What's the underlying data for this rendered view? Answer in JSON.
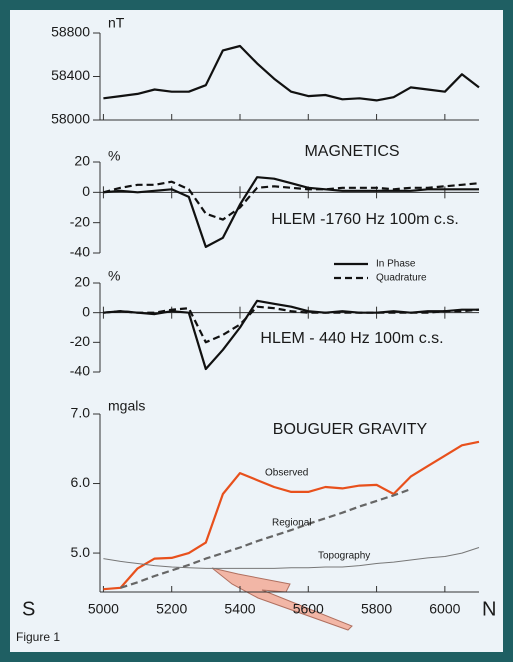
{
  "chart_data": [
    {
      "type": "line",
      "title": "MAGNETICS",
      "y_label": "nT",
      "x": [
        5000,
        5050,
        5100,
        5150,
        5200,
        5250,
        5300,
        5350,
        5400,
        5450,
        5500,
        5550,
        5600,
        5650,
        5700,
        5750,
        5800,
        5850,
        5900,
        5950,
        6000,
        6050,
        6100
      ],
      "series": [
        {
          "color": "#111111",
          "style": "solid",
          "values": [
            58200,
            58220,
            58240,
            58280,
            58260,
            58260,
            58320,
            58640,
            58680,
            58520,
            58380,
            58260,
            58220,
            58230,
            58190,
            58200,
            58180,
            58210,
            58300,
            58280,
            58260,
            58420,
            58300
          ]
        }
      ],
      "xlim": [
        4990,
        6100
      ],
      "ylim": [
        58000,
        58800
      ],
      "yticks": [
        58000,
        58400,
        58800
      ]
    },
    {
      "type": "line",
      "title": "HLEM -1760 Hz 100m c.s.",
      "y_label": "%",
      "x": [
        5000,
        5050,
        5100,
        5150,
        5200,
        5250,
        5300,
        5350,
        5400,
        5450,
        5500,
        5550,
        5600,
        5650,
        5700,
        5750,
        5800,
        5850,
        5900,
        5950,
        6000,
        6050,
        6100
      ],
      "series": [
        {
          "name": "In Phase",
          "color": "#111111",
          "style": "solid",
          "values": [
            0,
            1,
            0,
            1,
            2,
            -3,
            -36,
            -30,
            -8,
            10,
            9,
            6,
            3,
            2,
            1,
            1,
            1,
            1,
            1,
            2,
            2,
            2,
            2
          ]
        },
        {
          "name": "Quadrature",
          "color": "#111111",
          "style": "dashed",
          "values": [
            0,
            3,
            5,
            5,
            7,
            2,
            -14,
            -18,
            -10,
            3,
            4,
            3,
            2,
            2,
            3,
            3,
            3,
            2,
            3,
            3,
            4,
            5,
            6
          ]
        }
      ],
      "legend": "lower right",
      "xlim": [
        4990,
        6100
      ],
      "ylim": [
        -40,
        20
      ],
      "yticks": [
        -40,
        -20,
        0,
        20
      ]
    },
    {
      "type": "line",
      "title": "HLEM - 440 Hz 100m c.s.",
      "y_label": "%",
      "x": [
        5000,
        5050,
        5100,
        5150,
        5200,
        5250,
        5300,
        5350,
        5400,
        5450,
        5500,
        5550,
        5600,
        5650,
        5700,
        5750,
        5800,
        5850,
        5900,
        5950,
        6000,
        6050,
        6100
      ],
      "series": [
        {
          "color": "#111111",
          "style": "solid",
          "values": [
            0,
            1,
            0,
            -1,
            1,
            0,
            -38,
            -25,
            -10,
            8,
            6,
            4,
            1,
            0,
            1,
            0,
            0,
            1,
            0,
            1,
            1,
            2,
            2
          ]
        },
        {
          "color": "#111111",
          "style": "dashed",
          "values": [
            0,
            1,
            0,
            0,
            2,
            3,
            -20,
            -15,
            -8,
            4,
            3,
            1,
            0,
            0,
            0,
            0,
            0,
            0,
            0,
            0,
            1,
            1,
            2
          ]
        }
      ],
      "xlim": [
        4990,
        6100
      ],
      "ylim": [
        -40,
        20
      ],
      "yticks": [
        -40,
        -20,
        0,
        20
      ]
    },
    {
      "type": "line",
      "title": "BOUGUER GRAVITY",
      "y_label": "mgals",
      "x": [
        5000,
        5050,
        5100,
        5150,
        5200,
        5250,
        5300,
        5350,
        5400,
        5450,
        5500,
        5550,
        5600,
        5650,
        5700,
        5750,
        5800,
        5850,
        5900,
        5950,
        6000,
        6050,
        6100
      ],
      "series": [
        {
          "name": "Observed",
          "color": "#e8501c",
          "style": "solid",
          "values": [
            4.48,
            4.5,
            4.78,
            4.92,
            4.93,
            5.0,
            5.15,
            5.85,
            6.15,
            6.05,
            5.95,
            5.88,
            5.88,
            5.95,
            5.93,
            5.97,
            5.98,
            5.85,
            6.1,
            6.25,
            6.4,
            6.55,
            6.6
          ]
        },
        {
          "name": "Regional",
          "color": "#666666",
          "style": "dashed",
          "values": [
            null,
            4.5,
            4.58,
            4.67,
            4.75,
            4.83,
            4.92,
            5.0,
            5.08,
            5.17,
            5.25,
            5.33,
            5.42,
            5.5,
            5.58,
            5.67,
            5.75,
            5.83,
            5.92,
            null,
            null,
            null,
            null
          ]
        },
        {
          "name": "Topography",
          "color": "#777777",
          "style": "thin",
          "values": [
            4.92,
            4.88,
            4.85,
            4.82,
            4.8,
            4.79,
            4.78,
            4.78,
            4.78,
            4.78,
            4.78,
            4.79,
            4.79,
            4.8,
            4.8,
            4.82,
            4.85,
            4.87,
            4.9,
            4.93,
            4.95,
            5.0,
            5.08
          ]
        }
      ],
      "xlim": [
        4990,
        6100
      ],
      "ylim": [
        4.44,
        7.0
      ],
      "yticks": [
        {
          "value": 5.0,
          "label": "5.0"
        },
        {
          "value": 6.0,
          "label": "6.0"
        },
        {
          "value": 7.0,
          "label": "7.0"
        }
      ],
      "xticks": [
        5000,
        5200,
        5400,
        5600,
        5800,
        6000
      ]
    }
  ],
  "annotations": {
    "left": "S",
    "right": "N",
    "caption": "Figure 1"
  }
}
